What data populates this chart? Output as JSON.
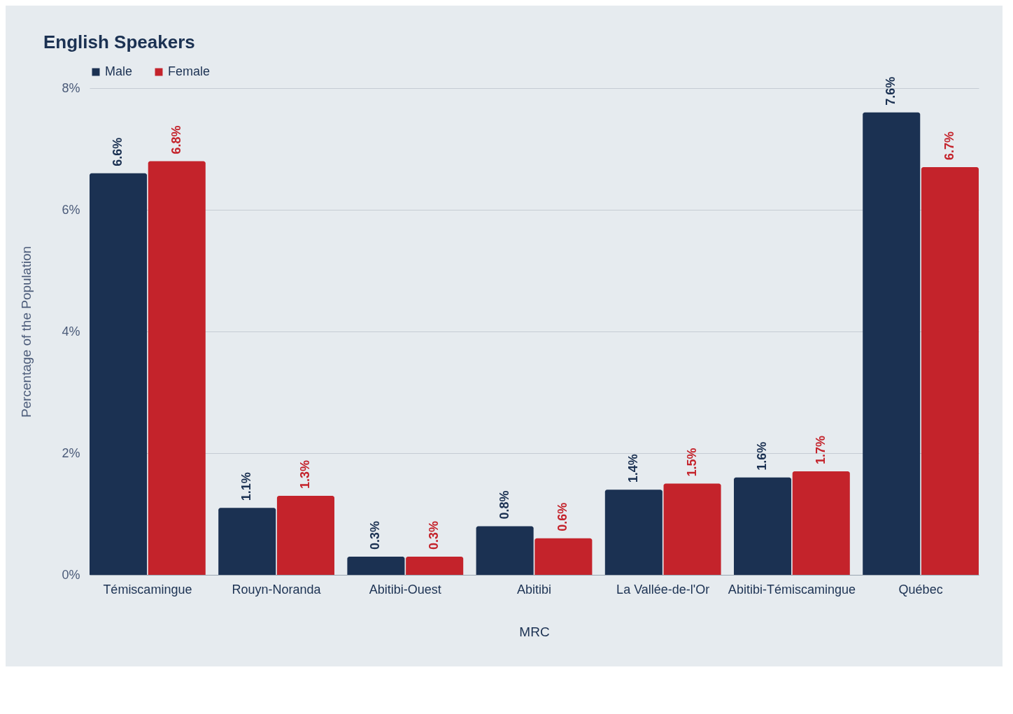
{
  "chart_data": {
    "type": "bar",
    "title": "English Speakers",
    "xlabel": "MRC",
    "ylabel": "Percentage of the Population",
    "categories": [
      "Témiscamingue",
      "Rouyn-Noranda",
      "Abitibi-Ouest",
      "Abitibi",
      "La Vallée-de-l'Or",
      "Abitibi-Témiscamingue",
      "Québec"
    ],
    "series": [
      {
        "name": "Male",
        "color": "#1b3152",
        "values": [
          6.6,
          1.1,
          0.3,
          0.8,
          1.4,
          1.6,
          7.6
        ],
        "value_labels": [
          "6.6%",
          "1.1%",
          "0.3%",
          "0.8%",
          "1.4%",
          "1.6%",
          "7.6%"
        ]
      },
      {
        "name": "Female",
        "color": "#c4232b",
        "values": [
          6.8,
          1.3,
          0.3,
          0.6,
          1.5,
          1.7,
          6.7
        ],
        "value_labels": [
          "6.8%",
          "1.3%",
          "0.3%",
          "0.6%",
          "1.5%",
          "1.7%",
          "6.7%"
        ]
      }
    ],
    "ylim": [
      0,
      8
    ],
    "yticks": [
      {
        "value": 0,
        "label": "0%"
      },
      {
        "value": 2,
        "label": "2%"
      },
      {
        "value": 4,
        "label": "4%"
      },
      {
        "value": 6,
        "label": "6%"
      },
      {
        "value": 8,
        "label": "8%"
      }
    ],
    "grid": "y",
    "legend": "top"
  }
}
